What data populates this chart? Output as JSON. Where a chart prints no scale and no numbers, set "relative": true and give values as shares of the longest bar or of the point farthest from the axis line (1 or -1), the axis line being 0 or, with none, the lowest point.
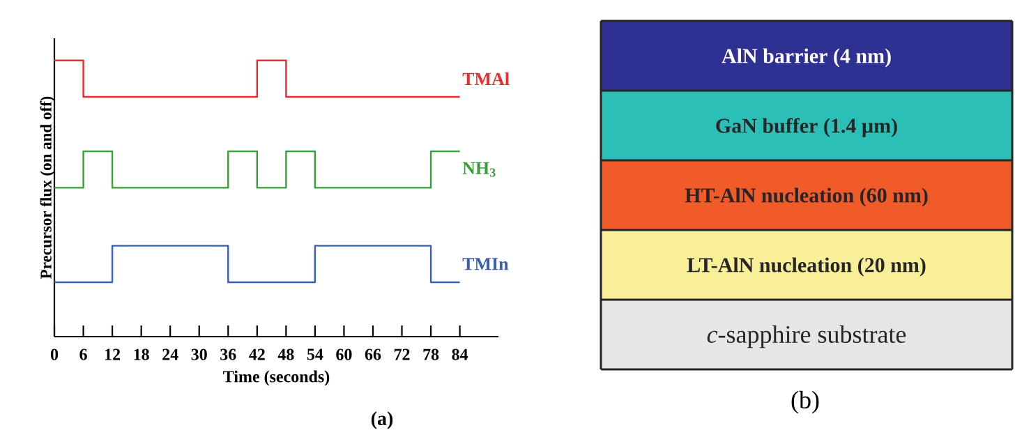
{
  "chart_data": [
    {
      "type": "step",
      "xlabel": "Time (seconds)",
      "ylabel": "Precursor flux (on and off)",
      "relative": true,
      "xlim": [
        0,
        92
      ],
      "xticks": [
        0,
        6,
        12,
        18,
        24,
        30,
        36,
        42,
        48,
        54,
        60,
        66,
        72,
        78,
        84
      ],
      "annotations": [
        "(a)"
      ],
      "series": [
        {
          "name": "TMAl",
          "color": "#ee2a2e",
          "x": [
            0,
            6,
            42,
            48,
            84
          ],
          "values": [
            1,
            0.868,
            1,
            0.868,
            0.868
          ]
        },
        {
          "name": "NH$_{3}$",
          "color": "#3a9b3a",
          "x": [
            0,
            6,
            12,
            36,
            42,
            48,
            54,
            78,
            84
          ],
          "values": [
            0.539,
            0.671,
            0.539,
            0.671,
            0.539,
            0.671,
            0.539,
            0.671,
            0.671
          ]
        },
        {
          "name": "TMIn",
          "color": "#3a5fb0",
          "x": [
            0,
            12,
            36,
            54,
            78,
            84
          ],
          "values": [
            0.197,
            0.329,
            0.197,
            0.329,
            0.197,
            0.197
          ]
        }
      ]
    },
    {
      "type": "other",
      "categories": [
        "AlN barrier (4 nm)",
        "GaN buffer (1.4 µm)",
        "HT-AlN nucleation (60 nm)",
        "LT-AlN nucleation (20 nm)",
        "*c*-sapphire substrate"
      ],
      "colors": [
        "#2e3192",
        "#2bbfb8",
        "#f15a29",
        "#f9ef98",
        "#e4e6e8"
      ],
      "annotations": [
        "(b)"
      ]
    }
  ]
}
